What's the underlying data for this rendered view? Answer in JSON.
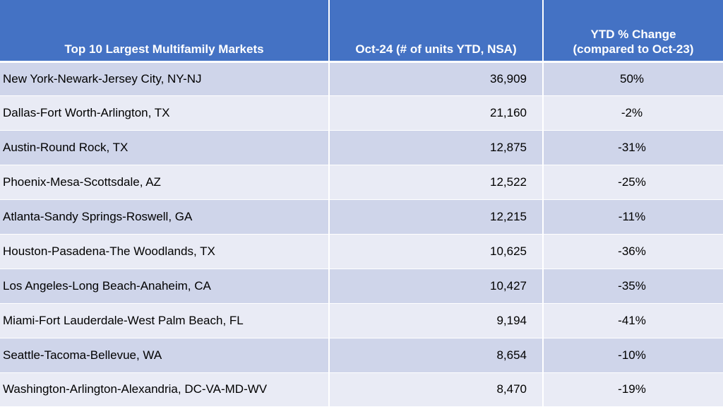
{
  "chart_data": {
    "type": "table",
    "columns": [
      "Top 10 Largest Multifamily Markets",
      "Oct-24 (# of units YTD, NSA)",
      "YTD % Change (compared to Oct-23)"
    ],
    "header": {
      "col1": "Top 10 Largest Multifamily Markets",
      "col2": "Oct-24 (# of units YTD, NSA)",
      "col3_line1": "YTD % Change",
      "col3_line2": "(compared to Oct-23)"
    },
    "rows": [
      {
        "market": "New York-Newark-Jersey City, NY-NJ",
        "units": "36,909",
        "change": "50%"
      },
      {
        "market": "Dallas-Fort Worth-Arlington, TX",
        "units": "21,160",
        "change": "-2%"
      },
      {
        "market": "Austin-Round Rock, TX",
        "units": "12,875",
        "change": "-31%"
      },
      {
        "market": "Phoenix-Mesa-Scottsdale, AZ",
        "units": "12,522",
        "change": "-25%"
      },
      {
        "market": "Atlanta-Sandy Springs-Roswell, GA",
        "units": "12,215",
        "change": "-11%"
      },
      {
        "market": "Houston-Pasadena-The Woodlands, TX",
        "units": "10,625",
        "change": "-36%"
      },
      {
        "market": "Los Angeles-Long Beach-Anaheim, CA",
        "units": "10,427",
        "change": "-35%"
      },
      {
        "market": "Miami-Fort Lauderdale-West Palm Beach, FL",
        "units": "9,194",
        "change": "-41%"
      },
      {
        "market": "Seattle-Tacoma-Bellevue, WA",
        "units": "8,654",
        "change": "-10%"
      },
      {
        "market": "Washington-Arlington-Alexandria, DC-VA-MD-WV",
        "units": "8,470",
        "change": "-19%"
      }
    ]
  },
  "colors": {
    "header_bg": "#4472c4",
    "row_dark": "#cfd5ea",
    "row_light": "#e9ebf5"
  }
}
